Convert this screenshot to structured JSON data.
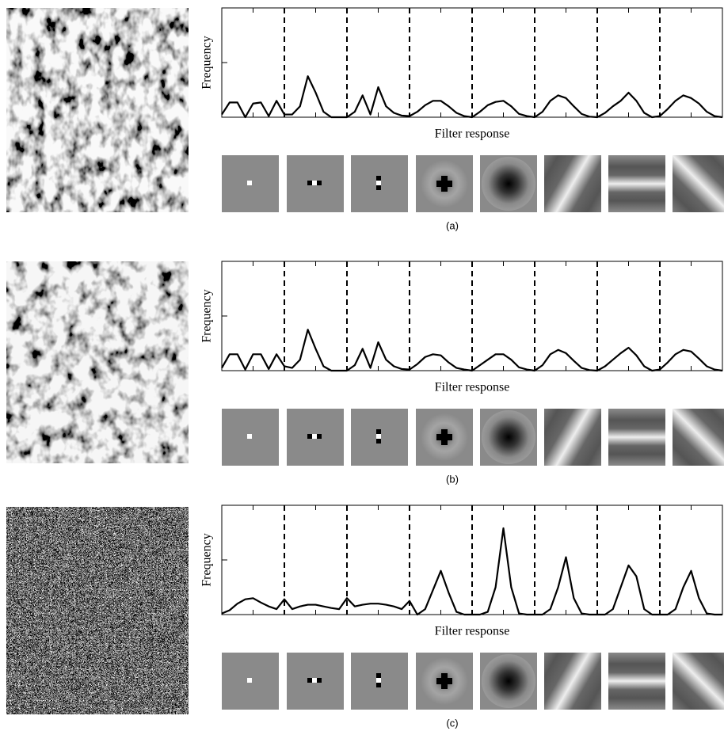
{
  "chart_data": [
    {
      "type": "line",
      "y_label": "Frequency",
      "x_label": "Filter response",
      "caption": "(a)",
      "color": "#000000",
      "xlim": [
        0,
        8
      ],
      "ylim": [
        0,
        2
      ],
      "yticks": [
        1
      ],
      "xticks": [
        0.5,
        1.5,
        2.5,
        3.5,
        4.5,
        5.5,
        6.5,
        7.5
      ],
      "separators": [
        1,
        2,
        3,
        4,
        5,
        6,
        7
      ],
      "x": [
        0,
        0.125,
        0.25,
        0.375,
        0.5,
        0.625,
        0.75,
        0.875,
        1,
        1.125,
        1.25,
        1.375,
        1.5,
        1.625,
        1.75,
        1.875,
        2,
        2.125,
        2.25,
        2.375,
        2.5,
        2.625,
        2.75,
        2.875,
        3,
        3.125,
        3.25,
        3.375,
        3.5,
        3.625,
        3.75,
        3.875,
        4,
        4.125,
        4.25,
        4.375,
        4.5,
        4.625,
        4.75,
        4.875,
        5,
        5.125,
        5.25,
        5.375,
        5.5,
        5.625,
        5.75,
        5.875,
        6,
        6.125,
        6.25,
        6.375,
        6.5,
        6.625,
        6.75,
        6.875,
        7,
        7.125,
        7.25,
        7.375,
        7.5,
        7.625,
        7.75,
        7.875,
        8
      ],
      "values": [
        0.05,
        0.27,
        0.27,
        0.0,
        0.25,
        0.27,
        0.02,
        0.3,
        0.05,
        0.05,
        0.2,
        0.75,
        0.45,
        0.1,
        0.0,
        0.0,
        0.0,
        0.1,
        0.4,
        0.05,
        0.55,
        0.2,
        0.08,
        0.03,
        0.02,
        0.1,
        0.22,
        0.3,
        0.3,
        0.2,
        0.08,
        0.02,
        0.0,
        0.1,
        0.22,
        0.28,
        0.3,
        0.2,
        0.06,
        0.02,
        0.0,
        0.1,
        0.3,
        0.4,
        0.35,
        0.2,
        0.06,
        0.01,
        0.0,
        0.08,
        0.2,
        0.3,
        0.45,
        0.3,
        0.08,
        0.0,
        0.02,
        0.15,
        0.3,
        0.4,
        0.35,
        0.25,
        0.1,
        0.02,
        0.0
      ]
    },
    {
      "type": "line",
      "y_label": "Frequency",
      "x_label": "Filter response",
      "caption": "(b)",
      "color": "#000000",
      "xlim": [
        0,
        8
      ],
      "ylim": [
        0,
        2
      ],
      "yticks": [
        1
      ],
      "xticks": [
        0.5,
        1.5,
        2.5,
        3.5,
        4.5,
        5.5,
        6.5,
        7.5
      ],
      "separators": [
        1,
        2,
        3,
        4,
        5,
        6,
        7
      ],
      "x": [
        0,
        0.125,
        0.25,
        0.375,
        0.5,
        0.625,
        0.75,
        0.875,
        1,
        1.125,
        1.25,
        1.375,
        1.5,
        1.625,
        1.75,
        1.875,
        2,
        2.125,
        2.25,
        2.375,
        2.5,
        2.625,
        2.75,
        2.875,
        3,
        3.125,
        3.25,
        3.375,
        3.5,
        3.625,
        3.75,
        3.875,
        4,
        4.125,
        4.25,
        4.375,
        4.5,
        4.625,
        4.75,
        4.875,
        5,
        5.125,
        5.25,
        5.375,
        5.5,
        5.625,
        5.75,
        5.875,
        6,
        6.125,
        6.25,
        6.375,
        6.5,
        6.625,
        6.75,
        6.875,
        7,
        7.125,
        7.25,
        7.375,
        7.5,
        7.625,
        7.75,
        7.875,
        8
      ],
      "values": [
        0.05,
        0.3,
        0.3,
        0.02,
        0.3,
        0.3,
        0.03,
        0.3,
        0.08,
        0.05,
        0.2,
        0.75,
        0.4,
        0.08,
        0.0,
        0.0,
        0.0,
        0.1,
        0.4,
        0.05,
        0.52,
        0.2,
        0.08,
        0.03,
        0.02,
        0.12,
        0.25,
        0.3,
        0.28,
        0.15,
        0.05,
        0.02,
        0.0,
        0.1,
        0.2,
        0.3,
        0.3,
        0.2,
        0.06,
        0.02,
        0.0,
        0.1,
        0.3,
        0.38,
        0.32,
        0.18,
        0.05,
        0.01,
        0.0,
        0.08,
        0.2,
        0.32,
        0.42,
        0.28,
        0.08,
        0.0,
        0.02,
        0.15,
        0.3,
        0.38,
        0.35,
        0.22,
        0.08,
        0.02,
        0.0
      ]
    },
    {
      "type": "line",
      "y_label": "Frequency",
      "x_label": "Filter response",
      "caption": "(c)",
      "color": "#000000",
      "xlim": [
        0,
        8
      ],
      "ylim": [
        0,
        2
      ],
      "yticks": [
        1
      ],
      "xticks": [
        0.5,
        1.5,
        2.5,
        3.5,
        4.5,
        5.5,
        6.5,
        7.5
      ],
      "separators": [
        1,
        2,
        3,
        4,
        5,
        6,
        7
      ],
      "x": [
        0,
        0.125,
        0.25,
        0.375,
        0.5,
        0.625,
        0.75,
        0.875,
        1,
        1.125,
        1.25,
        1.375,
        1.5,
        1.625,
        1.75,
        1.875,
        2,
        2.125,
        2.25,
        2.375,
        2.5,
        2.625,
        2.75,
        2.875,
        3,
        3.125,
        3.25,
        3.375,
        3.5,
        3.625,
        3.75,
        3.875,
        4,
        4.125,
        4.25,
        4.375,
        4.5,
        4.625,
        4.75,
        4.875,
        5,
        5.125,
        5.25,
        5.375,
        5.5,
        5.625,
        5.75,
        5.875,
        6,
        6.125,
        6.25,
        6.375,
        6.5,
        6.625,
        6.75,
        6.875,
        7,
        7.125,
        7.25,
        7.375,
        7.5,
        7.625,
        7.75,
        7.875,
        8
      ],
      "values": [
        0.02,
        0.08,
        0.2,
        0.28,
        0.3,
        0.22,
        0.15,
        0.1,
        0.28,
        0.1,
        0.15,
        0.18,
        0.18,
        0.15,
        0.12,
        0.1,
        0.3,
        0.15,
        0.18,
        0.2,
        0.2,
        0.18,
        0.15,
        0.1,
        0.25,
        0.0,
        0.1,
        0.45,
        0.8,
        0.4,
        0.05,
        0.0,
        0.0,
        0.0,
        0.05,
        0.5,
        1.58,
        0.5,
        0.02,
        0.0,
        0.0,
        0.0,
        0.1,
        0.5,
        1.05,
        0.3,
        0.02,
        0.0,
        0.0,
        0.0,
        0.1,
        0.5,
        0.9,
        0.7,
        0.1,
        0.0,
        0.0,
        0.0,
        0.1,
        0.5,
        0.8,
        0.3,
        0.02,
        0.0,
        0.0
      ]
    }
  ]
}
